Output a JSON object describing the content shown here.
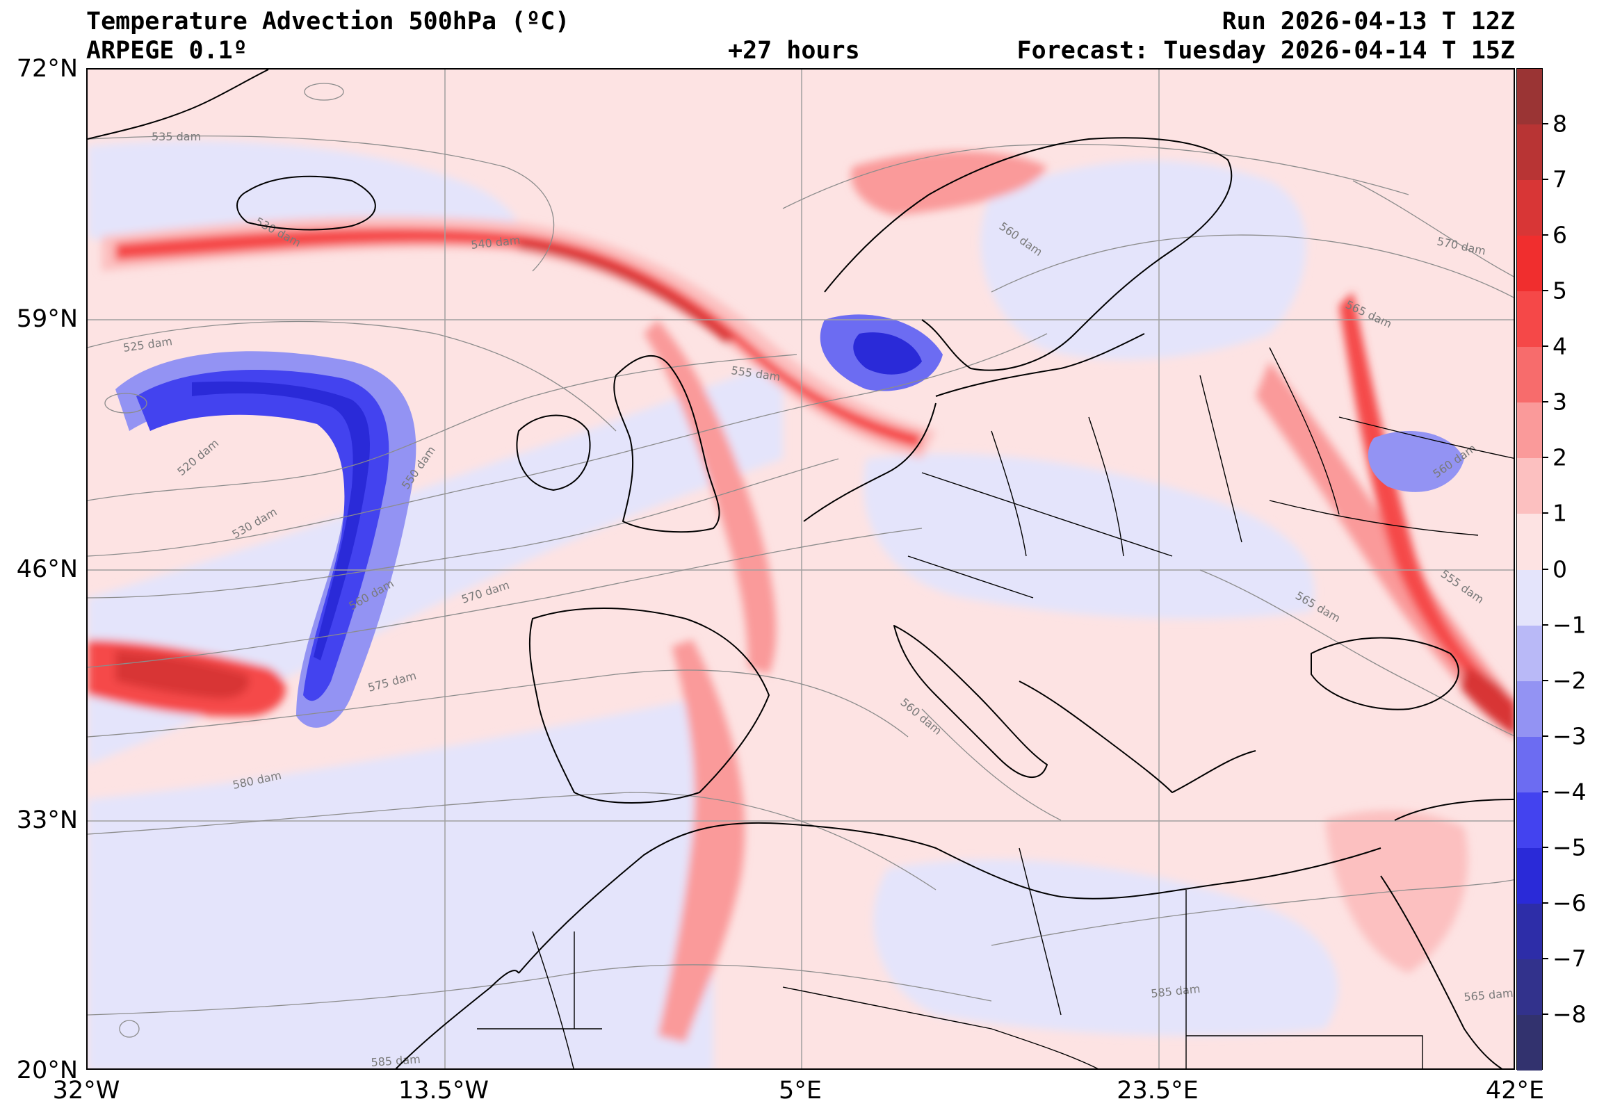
{
  "header": {
    "title": "Temperature Advection  500hPa (ºC)",
    "model": "ARPEGE 0.1º",
    "lead_time": "+27 hours",
    "run": "Run 2026-04-13 T 12Z",
    "forecast": "Forecast: Tuesday 2026-04-14 T 15Z"
  },
  "axes": {
    "lat_labels": [
      "72°N",
      "59°N",
      "46°N",
      "33°N",
      "20°N"
    ],
    "lon_labels": [
      "32°W",
      "13.5°W",
      "5°E",
      "23.5°E",
      "42°E"
    ],
    "lat_values": [
      72,
      59,
      46,
      33,
      20
    ],
    "lon_values": [
      -32,
      -13.5,
      5,
      23.5,
      42
    ],
    "lat_range": [
      20,
      72
    ],
    "lon_range": [
      -32,
      42
    ],
    "grid": true
  },
  "colorbar": {
    "ticks": [
      8,
      7,
      6,
      5,
      4,
      3,
      2,
      1,
      0,
      -1,
      -2,
      -3,
      -4,
      -5,
      -6,
      -7,
      -8
    ],
    "tick_labels": [
      "8",
      "7",
      "6",
      "5",
      "4",
      "3",
      "2",
      "1",
      "0",
      "−1",
      "−2",
      "−3",
      "−4",
      "−5",
      "−6",
      "−7",
      "−8"
    ],
    "range": [
      -9,
      9
    ],
    "levels": [
      {
        "min": 8,
        "max": 9,
        "color": "#9a3434"
      },
      {
        "min": 7,
        "max": 8,
        "color": "#b83434"
      },
      {
        "min": 6,
        "max": 7,
        "color": "#d83636"
      },
      {
        "min": 5,
        "max": 6,
        "color": "#f02e2e"
      },
      {
        "min": 4,
        "max": 5,
        "color": "#f54848"
      },
      {
        "min": 3,
        "max": 4,
        "color": "#f76c6c"
      },
      {
        "min": 2,
        "max": 3,
        "color": "#fa9a9a"
      },
      {
        "min": 1,
        "max": 2,
        "color": "#fcc0c0"
      },
      {
        "min": 0,
        "max": 1,
        "color": "#fde3e3"
      },
      {
        "min": -1,
        "max": 0,
        "color": "#e4e4fb"
      },
      {
        "min": -2,
        "max": -1,
        "color": "#b9b9f7"
      },
      {
        "min": -3,
        "max": -2,
        "color": "#9393f3"
      },
      {
        "min": -4,
        "max": -3,
        "color": "#6c6cf2"
      },
      {
        "min": -5,
        "max": -4,
        "color": "#4343ef"
      },
      {
        "min": -6,
        "max": -5,
        "color": "#2a2ad8"
      },
      {
        "min": -7,
        "max": -6,
        "color": "#2d2da8"
      },
      {
        "min": -8,
        "max": -7,
        "color": "#32328c"
      },
      {
        "min": -9,
        "max": -8,
        "color": "#32326e"
      }
    ]
  },
  "contour_labels": [
    "535 dam",
    "530 dam",
    "540 dam",
    "525 dam",
    "520 dam",
    "530 dam",
    "550 dam",
    "555 dam",
    "560 dam",
    "570 dam",
    "575 dam",
    "580 dam",
    "585 dam",
    "585 dam",
    "560 dam",
    "565 dam",
    "570 dam",
    "560 dam",
    "565 dam",
    "555 dam",
    "560 dam",
    "565 dam"
  ],
  "colors": {
    "positive_strong": "#f02e2e",
    "positive_weak": "#fde3e3",
    "negative_weak": "#e4e4fb",
    "negative_strong": "#2a2ad8",
    "contour": "#8c8c8c",
    "coastline": "#000000",
    "gridline": "#a0a0a0"
  }
}
